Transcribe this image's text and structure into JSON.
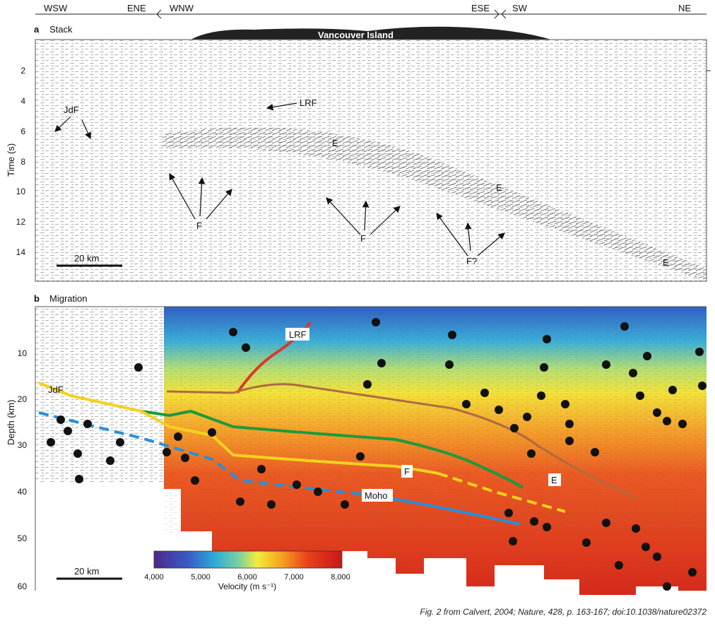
{
  "directions_top": {
    "a_left": "WSW",
    "a_right": "ENE",
    "b_left": "WNW",
    "b_right": "ESE",
    "c_left": "SW",
    "c_right": "NE"
  },
  "panel_a": {
    "letter": "a",
    "title": "Stack",
    "island_label": "Vancouver Island",
    "axis_label": "Time (s)",
    "ticks": [
      "2",
      "4",
      "6",
      "8",
      "10",
      "12",
      "14"
    ],
    "annotations": {
      "jdf": "JdF",
      "lrf": "LRF",
      "e1": "E",
      "e2": "E",
      "e3": "E",
      "f1": "F",
      "f2": "F",
      "f3": "F?"
    },
    "scale_bar": "20 km"
  },
  "panel_b": {
    "letter": "b",
    "title": "Migration",
    "axis_label": "Depth (km)",
    "ticks": [
      "10",
      "20",
      "30",
      "40",
      "50",
      "60"
    ],
    "annotations": {
      "lrf": "LRF",
      "jdf": "JdF",
      "f": "F",
      "e": "E",
      "moho": "Moho"
    },
    "scale_bar": "20 km",
    "colorbar": {
      "ticks": [
        "4,000",
        "5,000",
        "6,000",
        "7,000",
        "8,000"
      ],
      "label": "Velocity (m s⁻¹)"
    }
  },
  "caption": "Fig. 2 from  Calvert, 2004; Nature, 428, p. 163-167; doi:10.1038/nature02372",
  "colors": {
    "lrf": "#d83a2a",
    "e_line": "#b06a40",
    "green": "#1e9a3c",
    "yellow": "#f4d21c",
    "moho": "#2a8fd8"
  }
}
